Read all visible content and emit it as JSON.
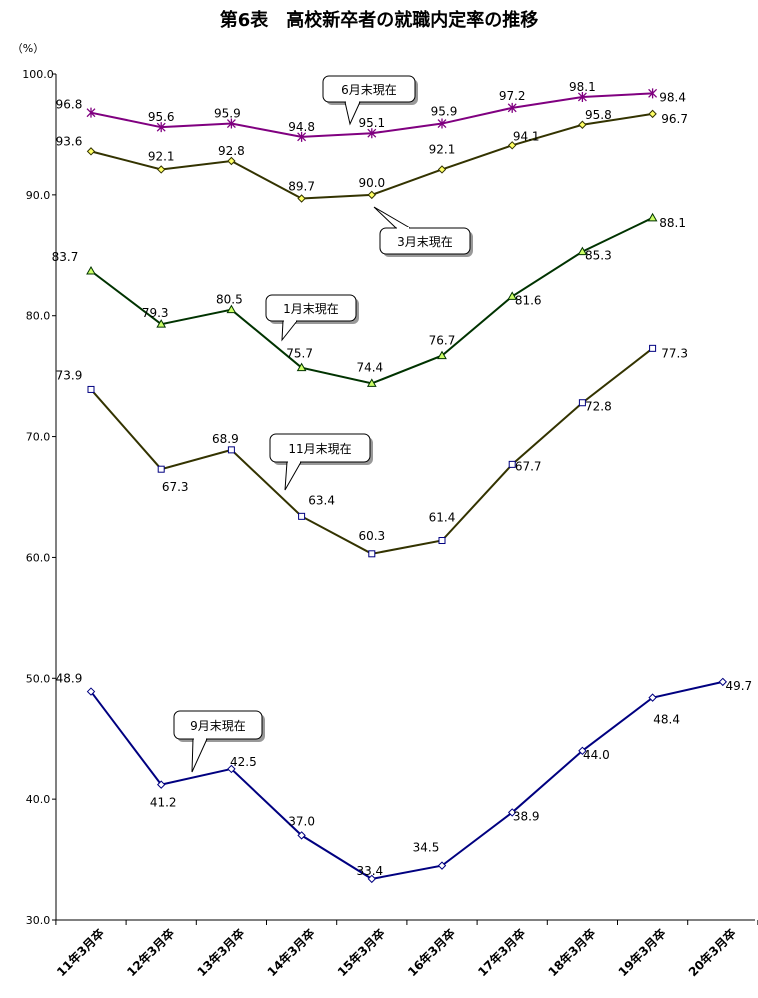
{
  "page_title": "第6表　高校新卒者の就職内定率の推移",
  "chart_data": {
    "type": "line",
    "title": "第6表　高校新卒者の就職内定率の推移",
    "ylabel": "（%）",
    "xlabel": "",
    "ylim": [
      30,
      100
    ],
    "yticks": [
      "30.0",
      "40.0",
      "50.0",
      "60.0",
      "70.0",
      "80.0",
      "90.0",
      "100.0"
    ],
    "categories": [
      "11年3月卒",
      "12年3月卒",
      "13年3月卒",
      "14年3月卒",
      "15年3月卒",
      "16年3月卒",
      "17年3月卒",
      "18年3月卒",
      "19年3月卒",
      "20年3月卒"
    ],
    "series": [
      {
        "name": "6月末現在",
        "color": "#800080",
        "marker": "star",
        "values": [
          96.8,
          95.6,
          95.9,
          94.8,
          95.1,
          95.9,
          97.2,
          98.1,
          98.4,
          null
        ],
        "labels": [
          "96.8",
          "95.6",
          "95.9",
          "94.8",
          "95.1",
          "95.9",
          "97.2",
          "98.1",
          "98.4",
          ""
        ]
      },
      {
        "name": "3月末現在",
        "color": "#333300",
        "marker": "diamond",
        "values": [
          93.6,
          92.1,
          92.8,
          89.7,
          90.0,
          92.1,
          94.1,
          95.8,
          96.7,
          null
        ],
        "labels": [
          "93.6",
          "92.1",
          "92.8",
          "89.7",
          "90.0",
          "92.1",
          "94.1",
          "95.8",
          "96.7",
          ""
        ]
      },
      {
        "name": "1月末現在",
        "color": "#003300",
        "marker": "triangle",
        "values": [
          83.7,
          79.3,
          80.5,
          75.7,
          74.4,
          76.7,
          81.6,
          85.3,
          88.1,
          null
        ],
        "labels": [
          "83.7",
          "79.3",
          "80.5",
          "75.7",
          "74.4",
          "76.7",
          "81.6",
          "85.3",
          "88.1",
          ""
        ]
      },
      {
        "name": "11月末現在",
        "color": "#333300",
        "marker": "square",
        "values": [
          73.9,
          67.3,
          68.9,
          63.4,
          60.3,
          61.4,
          67.7,
          72.8,
          77.3,
          null
        ],
        "labels": [
          "73.9",
          "67.3",
          "68.9",
          "63.4",
          "60.3",
          "61.4",
          "67.7",
          "72.8",
          "77.3",
          ""
        ]
      },
      {
        "name": "9月末現在",
        "color": "#000080",
        "marker": "diamond",
        "values": [
          48.9,
          41.2,
          42.5,
          37.0,
          33.4,
          34.5,
          38.9,
          44.0,
          48.4,
          49.7
        ],
        "labels": [
          "48.9",
          "41.2",
          "42.5",
          "37.0",
          "33.4",
          "34.5",
          "38.9",
          "44.0",
          "48.4",
          "49.7"
        ]
      }
    ],
    "callouts": [
      "6月末現在",
      "3月末現在",
      "1月末現在",
      "11月末現在",
      "9月末現在"
    ],
    "grid": false,
    "legend": "callouts"
  }
}
